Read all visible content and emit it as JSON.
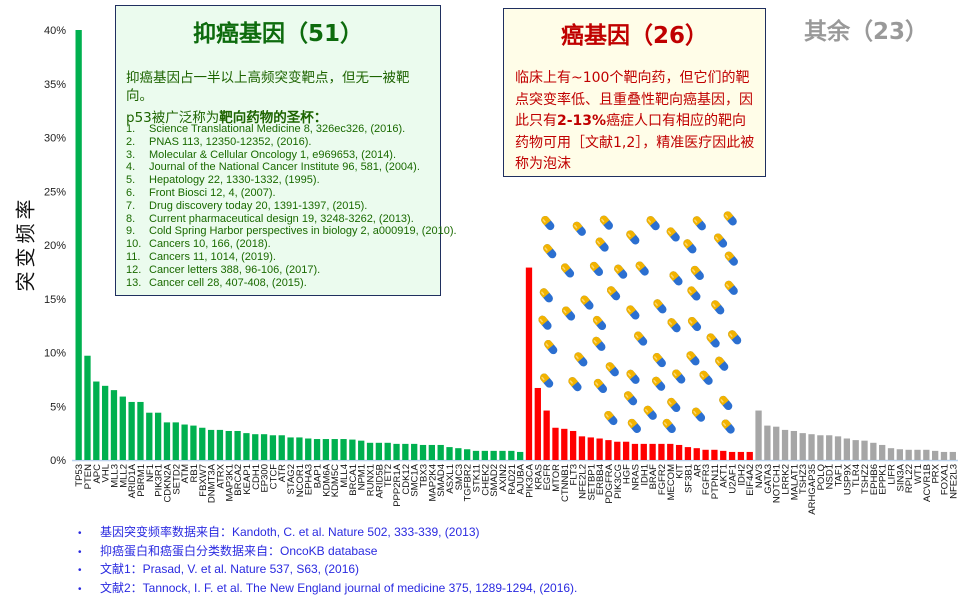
{
  "colors": {
    "tumor_suppressor": "#00b04f",
    "oncogene": "#ff0000",
    "other": "#a6a6a6",
    "footnote": "#2a2ae0"
  },
  "y_axis_label": "突变频率",
  "green_box": {
    "title": "抑癌基因（51）",
    "desc": "抑癌基因占一半以上高频突变靶点，但无一被靶向。",
    "lead_prefix": "p53被广泛称为",
    "lead_bold": "靶向药物的圣杯：",
    "refs": [
      {
        "n": "1.",
        "text": "Science Translational Medicine 8, 326ec326, (2016)."
      },
      {
        "n": "2.",
        "text": "PNAS 113, 12350-12352, (2016)."
      },
      {
        "n": "3.",
        "text": "Molecular & Cellular Oncology 1, e969653, (2014)."
      },
      {
        "n": "4.",
        "text": "Journal of the National Cancer Institute 96, 581, (2004)."
      },
      {
        "n": "5.",
        "text": "Hepatology 22, 1330-1332, (1995)."
      },
      {
        "n": "6.",
        "text": "Front Biosci 12, 4, (2007)."
      },
      {
        "n": "7.",
        "text": "Drug discovery today 20, 1391-1397, (2015)."
      },
      {
        "n": "8.",
        "text": "Current pharmaceutical design 19, 3248-3262, (2013)."
      },
      {
        "n": "9.",
        "text": "Cold Spring Harbor perspectives in biology 2, a000919, (2010)."
      },
      {
        "n": "10.",
        "text": "Cancers 10, 166, (2018)."
      },
      {
        "n": "11.",
        "text": "Cancers 11, 1014, (2019)."
      },
      {
        "n": "12.",
        "text": "Cancer letters 388, 96-106, (2017)."
      },
      {
        "n": "13.",
        "text": "Cancer cell 28, 407-408, (2015)."
      }
    ]
  },
  "red_box": {
    "title": "癌基因（26）",
    "desc_1": "临床上有~100个靶向药，但它们的靶点突变率低、且重叠性靶向癌基因，因此只有",
    "desc_bold": "2-13%",
    "desc_2": "癌症人口有相应的靶向药物可用［文献1,2］，精准医疗因此被称为泡沫"
  },
  "other_title": "其余（23）",
  "footnotes": [
    "基因突变频率数据来自：Kandoth, C. et al. Nature 502, 333-339, (2013)",
    "抑癌蛋白和癌蛋白分类数据来自：OncoKB database",
    "文献1：Prasad, V. et al. Nature 537, S63, (2016)",
    "文献2：Tannock, I. F. et al. The New England journal of medicine 375, 1289-1294, (2016)."
  ],
  "chart_data": {
    "type": "bar",
    "ylabel": "突变频率",
    "ylim": [
      0,
      40
    ],
    "yticks": [
      "0%",
      "5%",
      "10%",
      "15%",
      "20%",
      "25%",
      "30%",
      "35%",
      "40%"
    ],
    "grid": false,
    "unit": "%",
    "series": [
      {
        "name": "抑癌基因（51）",
        "color": "#00b04f",
        "categories": [
          "TP53",
          "PTEN",
          "APC",
          "VHL",
          "MLL3",
          "MLL2",
          "ARID1A",
          "PBRM1",
          "NF1",
          "PIK3R1",
          "CDKN2A",
          "SETD2",
          "ATM",
          "RB1",
          "FBXW7",
          "DNMT3A",
          "ATRX",
          "MAP3K1",
          "BRCA2",
          "KEAP1",
          "CDH1",
          "EP300",
          "CTCF",
          "ATR",
          "STAG2",
          "NCOR1",
          "EPHA3",
          "BAP1",
          "KDM6A",
          "KDM5C",
          "MLL4",
          "BRCA1",
          "NPM1",
          "RUNX1",
          "ARID5B",
          "TET2",
          "PPP2R1A",
          "CDK12",
          "SMC1A",
          "TBX3",
          "MAP2K4",
          "SMAD4",
          "ASXL1",
          "SMC3",
          "TGFBR2",
          "STK11",
          "CHEK2",
          "SMAD2",
          "AXIN2",
          "RAD21",
          "AJUBA"
        ],
        "values": [
          40,
          9.7,
          7.3,
          6.9,
          6.5,
          5.9,
          5.4,
          5.4,
          4.4,
          4.4,
          3.5,
          3.5,
          3.3,
          3.2,
          3.0,
          2.8,
          2.8,
          2.7,
          2.7,
          2.5,
          2.4,
          2.4,
          2.3,
          2.3,
          2.1,
          2.1,
          2.0,
          1.95,
          1.95,
          1.95,
          1.95,
          1.9,
          1.8,
          1.6,
          1.6,
          1.6,
          1.5,
          1.5,
          1.5,
          1.4,
          1.4,
          1.4,
          1.2,
          1.1,
          1.0,
          0.85,
          0.85,
          0.85,
          0.85,
          0.85,
          0.75
        ]
      },
      {
        "name": "癌基因（26）",
        "color": "#ff0000",
        "categories": [
          "PIK3CA",
          "KRAS",
          "EGFR",
          "MTOR",
          "CTNNB1",
          "FLT3",
          "NFE2L2",
          "SETBP1",
          "ERBB4",
          "PDGFRA",
          "PIK3CG",
          "HGF",
          "NRAS",
          "IDH1",
          "BRAF",
          "FGFR2",
          "MECOM",
          "KIT",
          "SF3B1",
          "AR",
          "FGFR3",
          "PTPN11",
          "AKT1",
          "U2AF1",
          "IDH2",
          "EIF4A2"
        ],
        "values": [
          17.9,
          6.7,
          4.6,
          3.0,
          2.9,
          2.7,
          2.2,
          2.1,
          2.0,
          1.85,
          1.7,
          1.7,
          1.5,
          1.5,
          1.5,
          1.5,
          1.5,
          1.4,
          1.2,
          1.1,
          0.95,
          0.95,
          0.85,
          0.75,
          0.75,
          0.75
        ]
      },
      {
        "name": "其余（23）",
        "color": "#a6a6a6",
        "categories": [
          "NAV3",
          "GATA3",
          "NOTCH1",
          "LRRK2",
          "MALAT1",
          "TSHZ3",
          "ARHGAP35",
          "POLQ",
          "NSD1",
          "TAF1",
          "USP9X",
          "TLR4",
          "TSHZ2",
          "EPHB6",
          "EPPK1",
          "LIFR",
          "SIN3A",
          "RPL22",
          "WT1",
          "ACVR1B",
          "PRX",
          "FOXA1",
          "NFE2L3"
        ],
        "values": [
          4.6,
          3.2,
          3.1,
          2.8,
          2.7,
          2.5,
          2.4,
          2.3,
          2.3,
          2.2,
          2.0,
          1.85,
          1.8,
          1.6,
          1.4,
          1.1,
          1.0,
          0.95,
          0.95,
          0.95,
          0.85,
          0.75,
          0.75
        ]
      }
    ]
  }
}
